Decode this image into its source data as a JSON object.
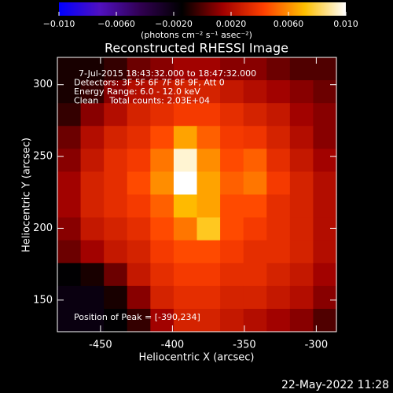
{
  "chart_data": {
    "type": "heatmap",
    "title": "Reconstructed RHESSI Image",
    "xlabel": "Heliocentric X (arcsec)",
    "ylabel": "Heliocentric Y (arcsec)",
    "xlim": [
      -480,
      -286
    ],
    "ylim": [
      128,
      319
    ],
    "xticks": [
      -450,
      -400,
      -350,
      -300
    ],
    "yticks": [
      150,
      200,
      250,
      300
    ],
    "colorbar_label": "(photons cm⁻² s⁻¹ asec⁻²)",
    "clim": [
      -0.01,
      0.01
    ],
    "cticks": [
      {
        "value": -0.01,
        "label": "−0.010"
      },
      {
        "value": -0.006,
        "label": "−0.0060"
      },
      {
        "value": -0.002,
        "label": "−0.0020"
      },
      {
        "value": 0.002,
        "label": "0.0020"
      },
      {
        "value": 0.006,
        "label": "0.0060"
      },
      {
        "value": 0.01,
        "label": "0.010"
      }
    ],
    "colors": [
      "#0000ff",
      "#5010c0",
      "#300050",
      "#000000",
      "#a00000",
      "#ff4000",
      "#ffc000",
      "#ffffff"
    ],
    "annotations": [
      "7-Jul-2015 18:43:32.000 to 18:47:32.000",
      "Detectors: 3F 5F 6F 7F 8F 9F, Att 0",
      "Energy Range: 6.0 - 12.0 keV",
      "Clean    Total counts: 2.03E+04"
    ],
    "peak_label": "Position of Peak = [-390,234]",
    "footer": "22-May-2022 11:28",
    "values": [
      [
        -0.001,
        -0.001,
        -0.0005,
        0.0005,
        0.001,
        0.0015,
        0.0015,
        0.001,
        0.001,
        0.0005,
        0,
        0
      ],
      [
        -0.001,
        -0.0005,
        0.001,
        0.002,
        0.0025,
        0.003,
        0.003,
        0.0025,
        0.002,
        0.0015,
        0.001,
        0.0005
      ],
      [
        -0.0005,
        0.001,
        0.002,
        0.003,
        0.0035,
        0.004,
        0.004,
        0.0035,
        0.003,
        0.0025,
        0.0015,
        0.001
      ],
      [
        0.0005,
        0.002,
        0.003,
        0.0035,
        0.0045,
        0.0065,
        0.005,
        0.004,
        0.0038,
        0.003,
        0.002,
        0.001
      ],
      [
        0.001,
        0.0025,
        0.0035,
        0.004,
        0.0055,
        0.0095,
        0.006,
        0.0045,
        0.005,
        0.0035,
        0.0025,
        0.0015
      ],
      [
        0.0015,
        0.003,
        0.0035,
        0.0045,
        0.006,
        0.01,
        0.0065,
        0.005,
        0.0055,
        0.004,
        0.003,
        0.002
      ],
      [
        0.0015,
        0.003,
        0.0035,
        0.004,
        0.005,
        0.007,
        0.0065,
        0.0045,
        0.0045,
        0.0035,
        0.003,
        0.002
      ],
      [
        0.001,
        0.0025,
        0.003,
        0.0035,
        0.0045,
        0.0055,
        0.0075,
        0.0045,
        0.004,
        0.0035,
        0.003,
        0.002
      ],
      [
        0.0005,
        0.0015,
        0.0025,
        0.003,
        0.004,
        0.0045,
        0.0045,
        0.004,
        0.0035,
        0.0035,
        0.003,
        0.002
      ],
      [
        -0.0015,
        -0.001,
        0.0005,
        0.0025,
        0.0035,
        0.004,
        0.004,
        0.0035,
        0.0035,
        0.003,
        0.0025,
        0.0015
      ],
      [
        -0.002,
        -0.002,
        -0.001,
        0.001,
        0.003,
        0.0035,
        0.0035,
        0.003,
        0.003,
        0.0025,
        0.002,
        0.001
      ],
      [
        -0.002,
        -0.002,
        -0.0015,
        -0.0005,
        0.0015,
        0.003,
        0.003,
        0.0025,
        0.002,
        0.0015,
        0.001,
        0
      ]
    ]
  }
}
